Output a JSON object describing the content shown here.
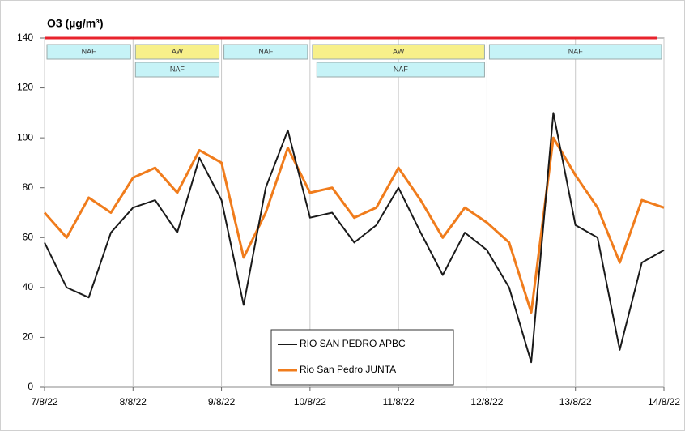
{
  "chart_data": {
    "type": "line",
    "title": "O3  (µg/m³)",
    "x": [
      0,
      0.25,
      0.5,
      0.75,
      1,
      1.25,
      1.5,
      1.75,
      2,
      2.25,
      2.5,
      2.75,
      3,
      3.25,
      3.5,
      3.75,
      4,
      4.25,
      4.5,
      4.75,
      5,
      5.25,
      5.5,
      5.75,
      6,
      6.25,
      6.5,
      6.75,
      7
    ],
    "xlim": [
      0,
      7
    ],
    "xticks": [
      {
        "value": 0,
        "label": "7/8/22"
      },
      {
        "value": 1,
        "label": "8/8/22"
      },
      {
        "value": 2,
        "label": "9/8/22"
      },
      {
        "value": 3,
        "label": "10/8/22"
      },
      {
        "value": 4,
        "label": "11/8/22"
      },
      {
        "value": 5,
        "label": "12/8/22"
      },
      {
        "value": 6,
        "label": "13/8/22"
      },
      {
        "value": 7,
        "label": "14/8/22"
      }
    ],
    "ylim": [
      0,
      140
    ],
    "yticks": [
      0,
      20,
      40,
      60,
      80,
      100,
      120,
      140
    ],
    "grid": true,
    "legend": "bottom-center",
    "threshold": {
      "value": 140,
      "color": "#e8232d"
    },
    "series": [
      {
        "name": "RIO SAN PEDRO APBC",
        "color": "#1a1a1a",
        "values": [
          58,
          40,
          36,
          62,
          72,
          75,
          62,
          92,
          75,
          33,
          80,
          103,
          68,
          70,
          58,
          65,
          80,
          62,
          45,
          62,
          55,
          40,
          10,
          110,
          65,
          60,
          15,
          50,
          55
        ]
      },
      {
        "name": "Rio San Pedro JUNTA",
        "color": "#f07c1c",
        "values": [
          70,
          60,
          76,
          70,
          84,
          88,
          78,
          95,
          90,
          52,
          70,
          96,
          78,
          80,
          68,
          72,
          88,
          75,
          60,
          72,
          66,
          58,
          30,
          100,
          85,
          72,
          50,
          75,
          72
        ]
      }
    ],
    "periods": [
      {
        "label": "NAF",
        "start": 0,
        "end": 1,
        "row": 0,
        "color": "#c6f3f7"
      },
      {
        "label": "AW",
        "start": 1,
        "end": 2,
        "row": 0,
        "color": "#f7f08a"
      },
      {
        "label": "NAF",
        "start": 2,
        "end": 3,
        "row": 0,
        "color": "#c6f3f7"
      },
      {
        "label": "AW",
        "start": 3,
        "end": 5,
        "row": 0,
        "color": "#f7f08a"
      },
      {
        "label": "NAF",
        "start": 5,
        "end": 7,
        "row": 0,
        "color": "#c6f3f7"
      },
      {
        "label": "NAF",
        "start": 1,
        "end": 2,
        "row": 1,
        "color": "#c6f3f7"
      },
      {
        "label": "NAF",
        "start": 3.05,
        "end": 5,
        "row": 1,
        "color": "#c6f3f7"
      }
    ]
  }
}
